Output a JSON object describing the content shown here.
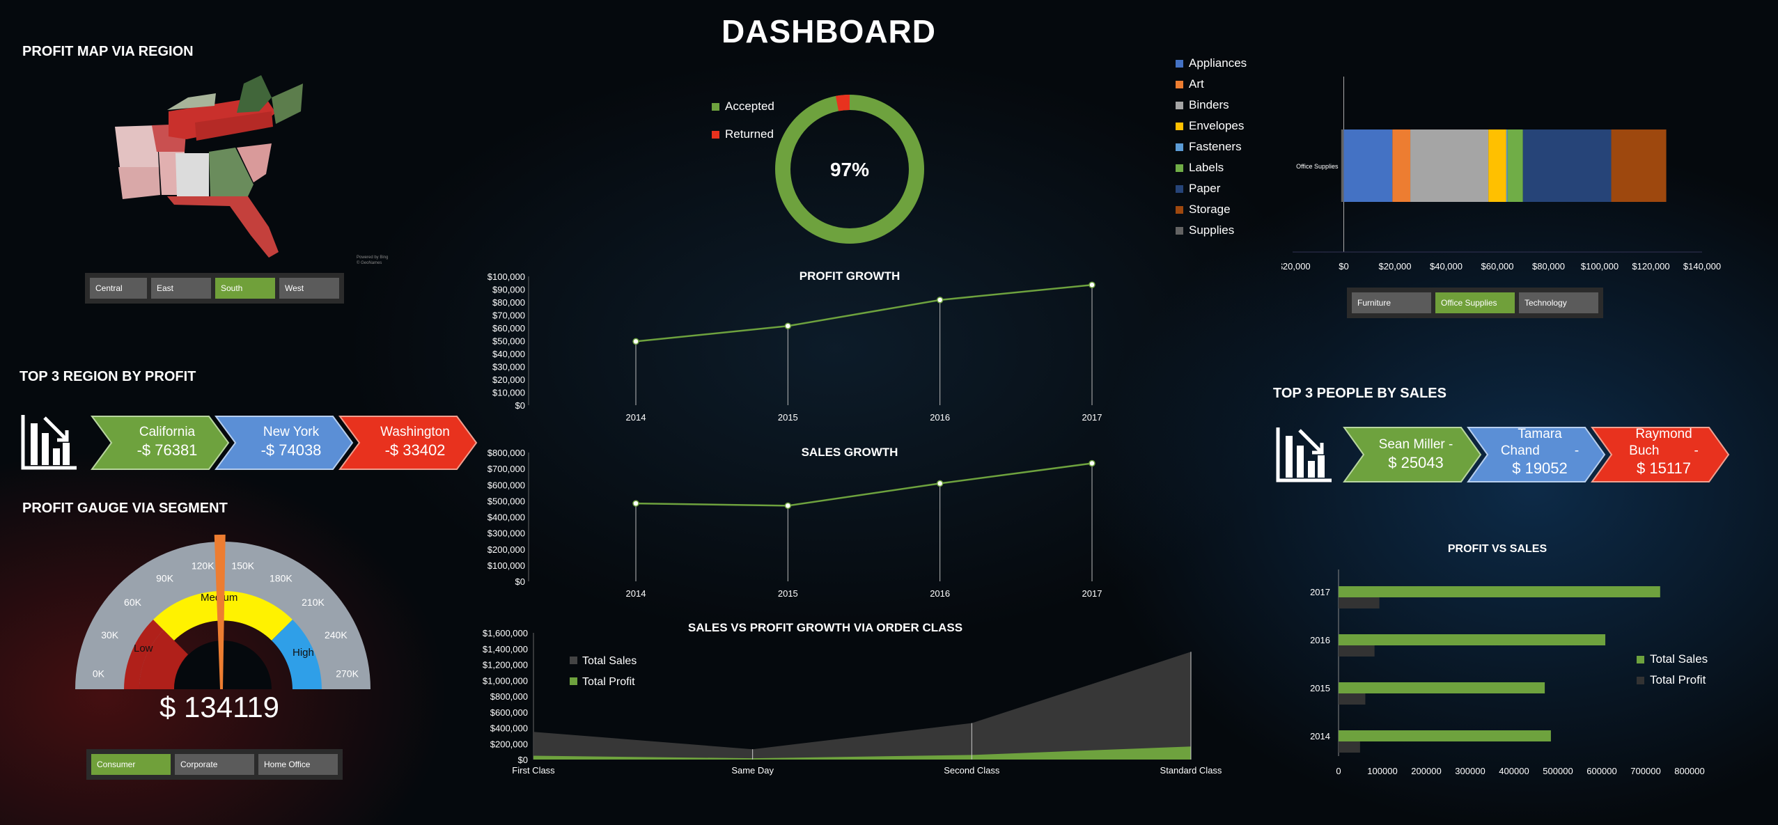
{
  "dashboard_title": "DASHBOARD",
  "profit_map": {
    "title": "PROFIT MAP VIA REGION",
    "attribution": [
      "Powered by Bing",
      "© GeoNames"
    ],
    "slicer": [
      "Central",
      "East",
      "South",
      "West"
    ],
    "slicer_selected": "South"
  },
  "top_regions": {
    "title": "TOP 3 REGION BY PROFIT",
    "items": [
      {
        "name": "California",
        "value": "-$ 76381",
        "color": "#6ea23e"
      },
      {
        "name": "New York",
        "value": "-$ 74038",
        "color": "#5b8fd6"
      },
      {
        "name": "Washington",
        "value": "-$ 33402",
        "color": "#e8321e"
      }
    ]
  },
  "gauge": {
    "title": "PROFIT GAUGE VIA SEGMENT",
    "ticks": [
      "0K",
      "30K",
      "60K",
      "90K",
      "120K",
      "150K",
      "180K",
      "210K",
      "240K",
      "270K"
    ],
    "bands": [
      "Low",
      "Medium",
      "High"
    ],
    "value_label": "$ 134119",
    "value": 134119,
    "max": 270000,
    "slicer": [
      "Consumer",
      "Corporate",
      "Home Office"
    ],
    "slicer_selected": "Consumer"
  },
  "donut": {
    "center_label": "97%",
    "legend": [
      {
        "name": "Accepted",
        "color": "#6ea23e"
      },
      {
        "name": "Returned",
        "color": "#e8321e"
      }
    ],
    "accepted_fraction": 0.97
  },
  "right_legend": [
    {
      "name": "Appliances",
      "color": "#4472c4"
    },
    {
      "name": "Art",
      "color": "#ed7d31"
    },
    {
      "name": "Binders",
      "color": "#a5a5a5"
    },
    {
      "name": "Envelopes",
      "color": "#ffc000"
    },
    {
      "name": "Fasteners",
      "color": "#5b9bd5"
    },
    {
      "name": "Labels",
      "color": "#70ad47"
    },
    {
      "name": "Paper",
      "color": "#264478"
    },
    {
      "name": "Storage",
      "color": "#9e480e"
    },
    {
      "name": "Supplies",
      "color": "#636363"
    }
  ],
  "category_slicer": [
    "Furniture",
    "Office Supplies",
    "Technology"
  ],
  "category_slicer_selected": "Office Supplies",
  "top_people": {
    "title": "TOP 3 PEOPLE BY SALES",
    "items": [
      {
        "line1": "Sean Miller -",
        "line2": "$ 25043",
        "color": "#6ea23e"
      },
      {
        "line1": "Tamara",
        "line1b": "Chand",
        "dash": "-",
        "line2": "$ 19052",
        "color": "#5b8fd6"
      },
      {
        "line1": "Raymond",
        "line1b": "Buch",
        "dash": "-",
        "line2": "$ 15117",
        "color": "#e8321e"
      }
    ]
  },
  "chart_data": [
    {
      "id": "subcategory_bar",
      "type": "bar",
      "orientation": "horizontal-stacked",
      "categories": [
        "Office Supplies"
      ],
      "series": [
        {
          "name": "Appliances",
          "values": [
            19000
          ]
        },
        {
          "name": "Art",
          "values": [
            7000
          ]
        },
        {
          "name": "Binders",
          "values": [
            30500
          ]
        },
        {
          "name": "Envelopes",
          "values": [
            7000
          ]
        },
        {
          "name": "Fasteners",
          "values": [
            500
          ]
        },
        {
          "name": "Labels",
          "values": [
            6000
          ]
        },
        {
          "name": "Paper",
          "values": [
            34500
          ]
        },
        {
          "name": "Storage",
          "values": [
            21500
          ]
        },
        {
          "name": "Supplies",
          "values": [
            -1000
          ]
        }
      ],
      "xlim": [
        -20000,
        140000
      ],
      "xticks": [
        "-$20,000",
        "$0",
        "$20,000",
        "$40,000",
        "$60,000",
        "$80,000",
        "$100,000",
        "$120,000",
        "$140,000"
      ]
    },
    {
      "id": "profit_growth",
      "type": "line",
      "title": "PROFIT GROWTH",
      "x": [
        "2014",
        "2015",
        "2016",
        "2017"
      ],
      "y": [
        49500,
        61500,
        81700,
        93400
      ],
      "ylim": [
        0,
        100000
      ],
      "yticks": [
        "$0",
        "$10,000",
        "$20,000",
        "$30,000",
        "$40,000",
        "$50,000",
        "$60,000",
        "$70,000",
        "$80,000",
        "$90,000",
        "$100,000"
      ]
    },
    {
      "id": "sales_growth",
      "type": "line",
      "title": "SALES GROWTH",
      "x": [
        "2014",
        "2015",
        "2016",
        "2017"
      ],
      "y": [
        484000,
        470000,
        608000,
        733000
      ],
      "ylim": [
        0,
        800000
      ],
      "yticks": [
        "$0",
        "$100,000",
        "$200,000",
        "$300,000",
        "$400,000",
        "$500,000",
        "$600,000",
        "$700,000",
        "$800,000"
      ]
    },
    {
      "id": "order_class",
      "type": "area",
      "title": "SALES VS PROFIT GROWTH VIA ORDER CLASS",
      "x": [
        "First Class",
        "Same Day",
        "Second Class",
        "Standard Class"
      ],
      "series": [
        {
          "name": "Total Sales",
          "values": [
            350000,
            130000,
            460000,
            1360000
          ],
          "color": "#3a3a3a"
        },
        {
          "name": "Total Profit",
          "values": [
            48000,
            16000,
            58000,
            165000
          ],
          "color": "#6ea23e"
        }
      ],
      "ylim": [
        0,
        1600000
      ],
      "yticks": [
        "$0",
        "$200,000",
        "$400,000",
        "$600,000",
        "$800,000",
        "$1,000,000",
        "$1,200,000",
        "$1,400,000",
        "$1,600,000"
      ]
    },
    {
      "id": "profit_vs_sales",
      "type": "bar",
      "orientation": "horizontal",
      "title": "PROFIT VS SALES",
      "categories": [
        "2017",
        "2016",
        "2015",
        "2014"
      ],
      "series": [
        {
          "name": "Total Sales",
          "values": [
            733000,
            608000,
            470000,
            484000
          ],
          "color": "#6ea23e"
        },
        {
          "name": "Total Profit",
          "values": [
            93000,
            82000,
            61000,
            49000
          ],
          "color": "#333333"
        }
      ],
      "xlim": [
        0,
        800000
      ],
      "xticks": [
        "0",
        "100000",
        "200000",
        "300000",
        "400000",
        "500000",
        "600000",
        "700000",
        "800000"
      ]
    }
  ]
}
